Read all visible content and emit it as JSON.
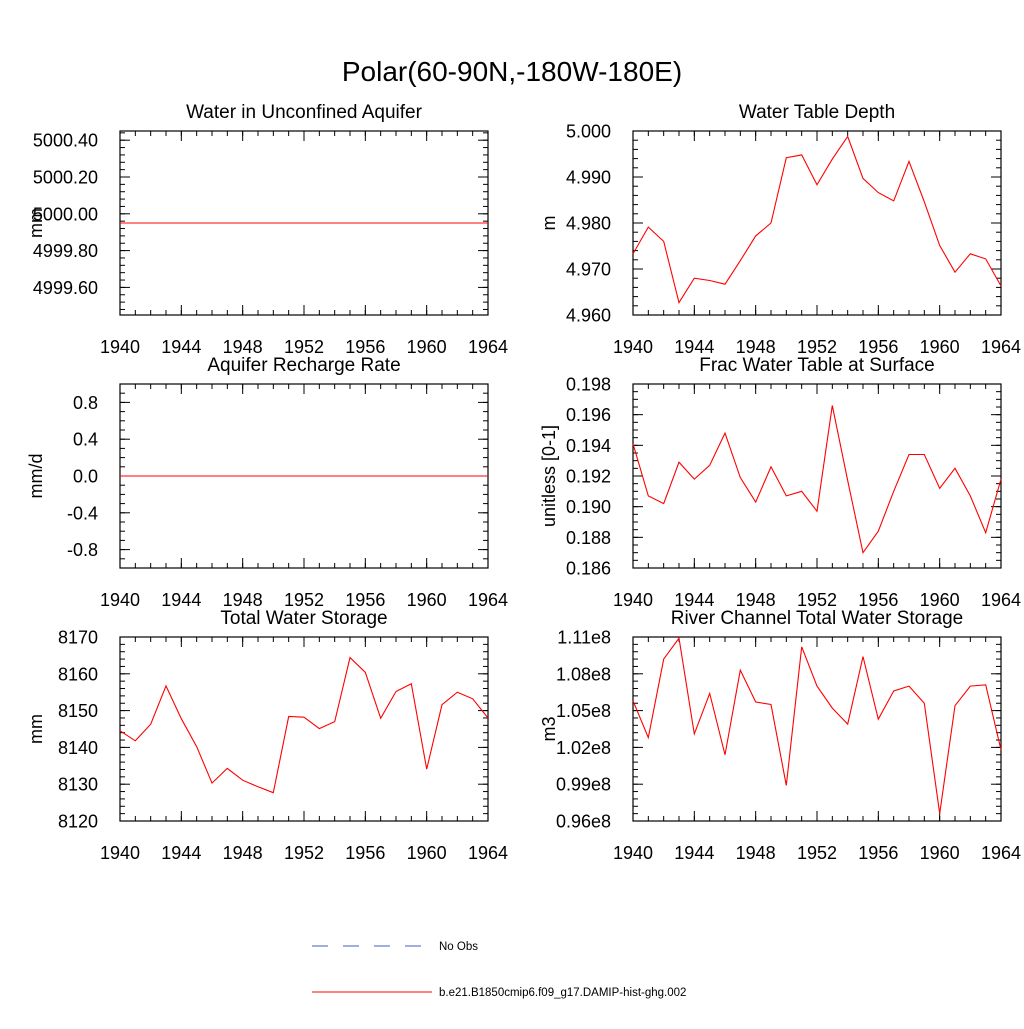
{
  "title": "Polar(60-90N,-180W-180E)",
  "colors": {
    "model": "#ff0000",
    "obs": "#4a5bbf"
  },
  "legend": [
    {
      "label": "No Obs",
      "style": "dashed",
      "color": "#4a5bbf"
    },
    {
      "label": "b.e21.B1850cmip6.f09_g17.DAMIP-hist-ghg.002",
      "style": "solid",
      "color": "#ff0000"
    }
  ],
  "chart_data": [
    {
      "type": "line",
      "title": "Water in Unconfined Aquifer",
      "xlabel": "",
      "ylabel": "mm",
      "xlim": [
        1940,
        1964
      ],
      "ylim": [
        4999.45,
        5000.45
      ],
      "xticks": [
        1940,
        1944,
        1948,
        1952,
        1956,
        1960,
        1964
      ],
      "yticks": [
        4999.6,
        4999.8,
        5000.0,
        5000.2,
        5000.4
      ],
      "ytick_labels": [
        "4999.60",
        "4999.80",
        "5000.00",
        "5000.20",
        "5000.40"
      ],
      "yminor": 0.04,
      "x": [
        1940,
        1941,
        1942,
        1943,
        1944,
        1945,
        1946,
        1947,
        1948,
        1949,
        1950,
        1951,
        1952,
        1953,
        1954,
        1955,
        1956,
        1957,
        1958,
        1959,
        1960,
        1961,
        1962,
        1963,
        1964
      ],
      "series": [
        {
          "values": [
            4999.95,
            4999.95,
            4999.95,
            4999.95,
            4999.95,
            4999.95,
            4999.95,
            4999.95,
            4999.95,
            4999.95,
            4999.95,
            4999.95,
            4999.95,
            4999.95,
            4999.95,
            4999.95,
            4999.95,
            4999.95,
            4999.95,
            4999.95,
            4999.95,
            4999.95,
            4999.95,
            4999.95,
            4999.95
          ]
        }
      ]
    },
    {
      "type": "line",
      "title": "Water Table Depth",
      "xlabel": "",
      "ylabel": "m",
      "xlim": [
        1940,
        1964
      ],
      "ylim": [
        4.96,
        5.0
      ],
      "xticks": [
        1940,
        1944,
        1948,
        1952,
        1956,
        1960,
        1964
      ],
      "yticks": [
        4.96,
        4.97,
        4.98,
        4.99,
        5.0
      ],
      "ytick_labels": [
        "4.960",
        "4.970",
        "4.980",
        "4.990",
        "5.000"
      ],
      "yminor": 0.002,
      "x": [
        1940,
        1941,
        1942,
        1943,
        1944,
        1945,
        1946,
        1947,
        1948,
        1949,
        1950,
        1951,
        1952,
        1953,
        1954,
        1955,
        1956,
        1957,
        1958,
        1959,
        1960,
        1961,
        1962,
        1963,
        1964
      ],
      "series": [
        {
          "values": [
            4.9733,
            4.9791,
            4.976,
            4.9627,
            4.968,
            4.9675,
            4.9667,
            4.9718,
            4.9772,
            4.98,
            4.9942,
            4.9948,
            4.9883,
            4.9939,
            4.9988,
            4.9897,
            4.9866,
            4.9848,
            4.9934,
            4.9846,
            4.9751,
            4.9693,
            4.9733,
            4.9722,
            4.9663
          ]
        }
      ]
    },
    {
      "type": "line",
      "title": "Aquifer Recharge Rate",
      "xlabel": "",
      "ylabel": "mm/d",
      "xlim": [
        1940,
        1964
      ],
      "ylim": [
        -1.0,
        1.0
      ],
      "xticks": [
        1940,
        1944,
        1948,
        1952,
        1956,
        1960,
        1964
      ],
      "yticks": [
        -0.8,
        -0.4,
        0.0,
        0.4,
        0.8
      ],
      "ytick_labels": [
        "-0.8",
        "-0.4",
        "0.0",
        "0.4",
        "0.8"
      ],
      "yminor": 0.1,
      "x": [
        1940,
        1941,
        1942,
        1943,
        1944,
        1945,
        1946,
        1947,
        1948,
        1949,
        1950,
        1951,
        1952,
        1953,
        1954,
        1955,
        1956,
        1957,
        1958,
        1959,
        1960,
        1961,
        1962,
        1963,
        1964
      ],
      "series": [
        {
          "values": [
            0,
            0,
            0,
            0,
            0,
            0,
            0,
            0,
            0,
            0,
            0,
            0,
            0,
            0,
            0,
            0,
            0,
            0,
            0,
            0,
            0,
            0,
            0,
            0,
            0
          ]
        }
      ]
    },
    {
      "type": "line",
      "title": "Frac Water Table at Surface",
      "xlabel": "",
      "ylabel": "unitless [0-1]",
      "xlim": [
        1940,
        1964
      ],
      "ylim": [
        0.186,
        0.198
      ],
      "xticks": [
        1940,
        1944,
        1948,
        1952,
        1956,
        1960,
        1964
      ],
      "yticks": [
        0.186,
        0.188,
        0.19,
        0.192,
        0.194,
        0.196,
        0.198
      ],
      "ytick_labels": [
        "0.186",
        "0.188",
        "0.190",
        "0.192",
        "0.194",
        "0.196",
        "0.198"
      ],
      "yminor": 0.0005,
      "x": [
        1940,
        1941,
        1942,
        1943,
        1944,
        1945,
        1946,
        1947,
        1948,
        1949,
        1950,
        1951,
        1952,
        1953,
        1954,
        1955,
        1956,
        1957,
        1958,
        1959,
        1960,
        1961,
        1962,
        1963,
        1964
      ],
      "series": [
        {
          "values": [
            0.1941,
            0.1907,
            0.1902,
            0.1929,
            0.1918,
            0.1927,
            0.1948,
            0.1919,
            0.1903,
            0.1926,
            0.1907,
            0.191,
            0.1897,
            0.1966,
            0.1917,
            0.187,
            0.1884,
            0.191,
            0.1934,
            0.1934,
            0.1912,
            0.1925,
            0.1907,
            0.1883,
            0.1918
          ]
        }
      ]
    },
    {
      "type": "line",
      "title": "Total Water Storage",
      "xlabel": "",
      "ylabel": "mm",
      "xlim": [
        1940,
        1964
      ],
      "ylim": [
        8120,
        8170
      ],
      "xticks": [
        1940,
        1944,
        1948,
        1952,
        1956,
        1960,
        1964
      ],
      "yticks": [
        8120,
        8130,
        8140,
        8150,
        8160,
        8170
      ],
      "ytick_labels": [
        "8120",
        "8130",
        "8140",
        "8150",
        "8160",
        "8170"
      ],
      "yminor": 2,
      "x": [
        1940,
        1941,
        1942,
        1943,
        1944,
        1945,
        1946,
        1947,
        1948,
        1949,
        1950,
        1951,
        1952,
        1953,
        1954,
        1955,
        1956,
        1957,
        1958,
        1959,
        1960,
        1961,
        1962,
        1963,
        1964
      ],
      "series": [
        {
          "values": [
            8144.5,
            8141.8,
            8146.3,
            8156.7,
            8147.8,
            8140.2,
            8130.3,
            8134.3,
            8131.1,
            8129.3,
            8127.7,
            8148.4,
            8148.2,
            8145.1,
            8147.0,
            8164.4,
            8160.4,
            8147.9,
            8155.2,
            8157.3,
            8134.1,
            8151.6,
            8155.0,
            8153.2,
            8148.0
          ]
        }
      ]
    },
    {
      "type": "line",
      "title": "River Channel Total Water Storage",
      "xlabel": "",
      "ylabel": "m3",
      "xlim": [
        1940,
        1964
      ],
      "ylim": [
        96000000,
        111000000
      ],
      "xticks": [
        1940,
        1944,
        1948,
        1952,
        1956,
        1960,
        1964
      ],
      "yticks": [
        96000000,
        99000000,
        102000000,
        105000000,
        108000000,
        111000000
      ],
      "ytick_labels": [
        "0.96e8",
        "0.99e8",
        "1.02e8",
        "1.05e8",
        "1.08e8",
        "1.11e8"
      ],
      "yminor": 600000,
      "x": [
        1940,
        1941,
        1942,
        1943,
        1944,
        1945,
        1946,
        1947,
        1948,
        1949,
        1950,
        1951,
        1952,
        1953,
        1954,
        1955,
        1956,
        1957,
        1958,
        1959,
        1960,
        1961,
        1962,
        1963,
        1964
      ],
      "series": [
        {
          "values": [
            105800000,
            102800000,
            109200000,
            110900000,
            103100000,
            106400000,
            101400000,
            108300000,
            105700000,
            105500000,
            98900000,
            110200000,
            107000000,
            105200000,
            103900000,
            109400000,
            104300000,
            106600000,
            107000000,
            105600000,
            96600000,
            105400000,
            107000000,
            107100000,
            101800000
          ]
        }
      ]
    }
  ]
}
